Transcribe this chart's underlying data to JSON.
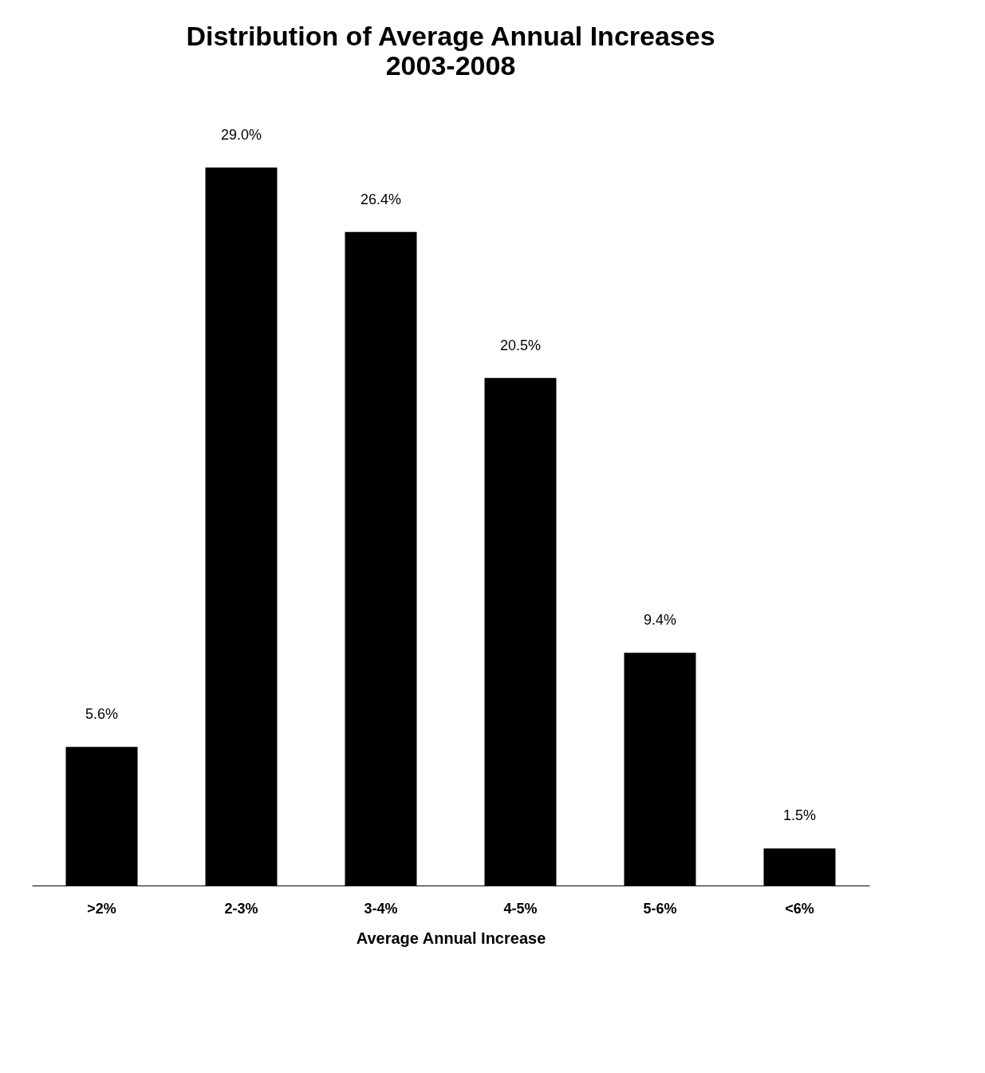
{
  "chart_data": {
    "type": "bar",
    "title": "Distribution of Average Annual Increases",
    "subtitle": "2003-2008",
    "xlabel": "Average Annual Increase",
    "categories": [
      ">2%",
      "2-3%",
      "3-4%",
      "4-5%",
      "5-6%",
      "<6%"
    ],
    "values": [
      5.6,
      29.0,
      26.4,
      20.5,
      9.4,
      1.5
    ],
    "value_labels": [
      "5.6%",
      "29.0%",
      "26.4%",
      "20.5%",
      "9.4%",
      "1.5%"
    ],
    "color": "#000000",
    "tick_labels": "x"
  }
}
